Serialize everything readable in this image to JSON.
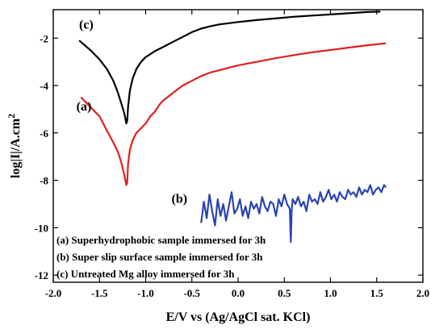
{
  "chart_data": {
    "type": "line",
    "xlabel": "E/V vs (Ag/AgCl sat. KCl)",
    "ylabel": "log|I|/A.cm",
    "ylabel_superscript": "2",
    "xlim": [
      -2.0,
      2.0
    ],
    "ylim": [
      -12.3,
      -0.8
    ],
    "xticks": [
      -2.0,
      -1.5,
      -1.0,
      -0.5,
      0.0,
      0.5,
      1.0,
      1.5,
      2.0
    ],
    "xtick_labels": [
      "-2.0",
      "-1.5",
      "-1.0",
      "-0.5",
      "0.0",
      "0.5",
      "1.0",
      "1.5",
      "2.0"
    ],
    "yticks": [
      -12,
      -10,
      -8,
      -6,
      -4,
      -2
    ],
    "ytick_labels": [
      "-12",
      "-10",
      "-8",
      "-6",
      "-4",
      "-2"
    ],
    "grid": false,
    "series": [
      {
        "label": "(c)",
        "color": "#000000",
        "x": [
          -1.72,
          -1.6,
          -1.5,
          -1.42,
          -1.35,
          -1.3,
          -1.26,
          -1.23,
          -1.21,
          -1.2,
          -1.19,
          -1.17,
          -1.14,
          -1.1,
          -1.05,
          -1.0,
          -0.9,
          -0.8,
          -0.7,
          -0.6,
          -0.5,
          -0.4,
          -0.3,
          -0.2,
          -0.1,
          0.0,
          0.2,
          0.4,
          0.6,
          0.8,
          1.0,
          1.2,
          1.4,
          1.54
        ],
        "y": [
          -2.1,
          -2.5,
          -2.9,
          -3.3,
          -3.8,
          -4.3,
          -4.8,
          -5.2,
          -5.6,
          -5.5,
          -4.9,
          -4.2,
          -3.7,
          -3.3,
          -3.0,
          -2.8,
          -2.55,
          -2.35,
          -2.15,
          -1.95,
          -1.75,
          -1.6,
          -1.5,
          -1.42,
          -1.37,
          -1.32,
          -1.24,
          -1.17,
          -1.1,
          -1.05,
          -1.0,
          -0.95,
          -0.9,
          -0.88
        ]
      },
      {
        "label": "(a)",
        "color": "#e02020",
        "x": [
          -1.7,
          -1.6,
          -1.5,
          -1.42,
          -1.35,
          -1.3,
          -1.26,
          -1.23,
          -1.21,
          -1.2,
          -1.19,
          -1.17,
          -1.14,
          -1.1,
          -1.05,
          -1.0,
          -0.95,
          -0.9,
          -0.85,
          -0.8,
          -0.7,
          -0.6,
          -0.5,
          -0.4,
          -0.3,
          -0.2,
          0.0,
          0.2,
          0.4,
          0.6,
          0.8,
          1.0,
          1.2,
          1.4,
          1.6
        ],
        "y": [
          -4.5,
          -4.9,
          -5.3,
          -5.9,
          -6.4,
          -6.8,
          -7.3,
          -7.8,
          -8.2,
          -8.1,
          -7.3,
          -6.7,
          -6.3,
          -6.0,
          -5.8,
          -5.6,
          -5.3,
          -5.1,
          -4.8,
          -4.6,
          -4.3,
          -4.0,
          -3.8,
          -3.6,
          -3.45,
          -3.35,
          -3.15,
          -3.0,
          -2.85,
          -2.72,
          -2.6,
          -2.5,
          -2.4,
          -2.3,
          -2.22
        ]
      },
      {
        "label": "(b)",
        "color": "#2b45b0",
        "x": [
          -0.4,
          -0.37,
          -0.34,
          -0.31,
          -0.28,
          -0.25,
          -0.22,
          -0.19,
          -0.16,
          -0.13,
          -0.1,
          -0.07,
          -0.04,
          -0.01,
          0.02,
          0.05,
          0.08,
          0.11,
          0.14,
          0.17,
          0.2,
          0.23,
          0.26,
          0.29,
          0.32,
          0.35,
          0.38,
          0.41,
          0.44,
          0.47,
          0.5,
          0.53,
          0.56,
          0.57,
          0.58,
          0.59,
          0.62,
          0.65,
          0.68,
          0.71,
          0.74,
          0.77,
          0.8,
          0.83,
          0.86,
          0.89,
          0.92,
          0.95,
          0.98,
          1.01,
          1.04,
          1.07,
          1.1,
          1.13,
          1.16,
          1.19,
          1.22,
          1.25,
          1.28,
          1.31,
          1.34,
          1.37,
          1.4,
          1.43,
          1.46,
          1.49,
          1.52,
          1.55,
          1.58,
          1.6
        ],
        "y": [
          -9.8,
          -8.9,
          -9.6,
          -8.6,
          -9.3,
          -9.9,
          -8.8,
          -9.5,
          -9.0,
          -9.7,
          -9.1,
          -8.5,
          -9.4,
          -9.2,
          -8.8,
          -9.5,
          -9.1,
          -9.6,
          -8.9,
          -9.2,
          -9.0,
          -9.4,
          -8.7,
          -9.1,
          -9.3,
          -8.9,
          -9.0,
          -9.5,
          -8.8,
          -9.1,
          -8.6,
          -9.0,
          -9.2,
          -10.6,
          -9.3,
          -8.8,
          -9.0,
          -8.7,
          -9.1,
          -8.9,
          -9.3,
          -8.6,
          -8.9,
          -8.8,
          -9.0,
          -8.5,
          -8.9,
          -8.7,
          -8.4,
          -8.8,
          -8.6,
          -8.9,
          -8.5,
          -8.7,
          -8.8,
          -8.4,
          -8.6,
          -8.5,
          -8.7,
          -8.3,
          -8.6,
          -8.4,
          -8.5,
          -8.2,
          -8.6,
          -8.4,
          -8.3,
          -8.5,
          -8.2,
          -8.3
        ]
      }
    ],
    "annotations": [
      {
        "text": "(c)",
        "x": -1.72,
        "y": -1.6
      },
      {
        "text": "(a)",
        "x": -1.75,
        "y": -5.05
      },
      {
        "text": "(b)",
        "x": -0.72,
        "y": -8.95
      }
    ],
    "legend_lines": [
      "(a) Superhydrophobic sample immersed for 3h",
      "(b) Super slip surface sample immersed for 3h",
      "(c) Untreated Mg alloy immersed for 3h"
    ],
    "legend_position": "bottom-left"
  }
}
